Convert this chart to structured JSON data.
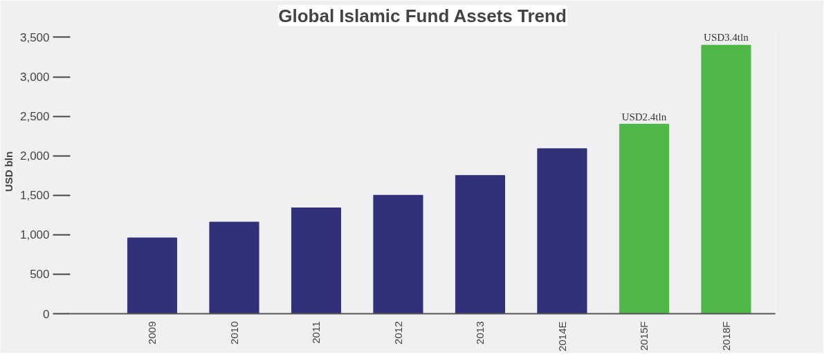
{
  "chart_data": {
    "type": "bar",
    "title": "Global Islamic Fund Assets Trend",
    "ylabel": "USD bln",
    "categories": [
      "2009",
      "2010",
      "2011",
      "2012",
      "2013",
      "2014E",
      "2015F",
      "2018F"
    ],
    "values": [
      960,
      1160,
      1340,
      1500,
      1750,
      2090,
      2400,
      3400
    ],
    "colors": [
      "#31307a",
      "#31307a",
      "#31307a",
      "#31307a",
      "#31307a",
      "#31307a",
      "#50b848",
      "#50b848"
    ],
    "value_labels": [
      null,
      null,
      null,
      null,
      null,
      null,
      "USD2.4tln",
      "USD3.4tln"
    ],
    "ylim": [
      0,
      3600
    ],
    "yticks": [
      0,
      500,
      {
        "value": 1000,
        "label": "1,000"
      },
      {
        "value": 1500,
        "label": "1,500"
      },
      {
        "value": 2000,
        "label": "2,000"
      },
      {
        "value": 2500,
        "label": "2,500"
      },
      {
        "value": 3000,
        "label": "3,000"
      },
      {
        "value": 3500,
        "label": "3,500"
      }
    ],
    "grid": false
  }
}
